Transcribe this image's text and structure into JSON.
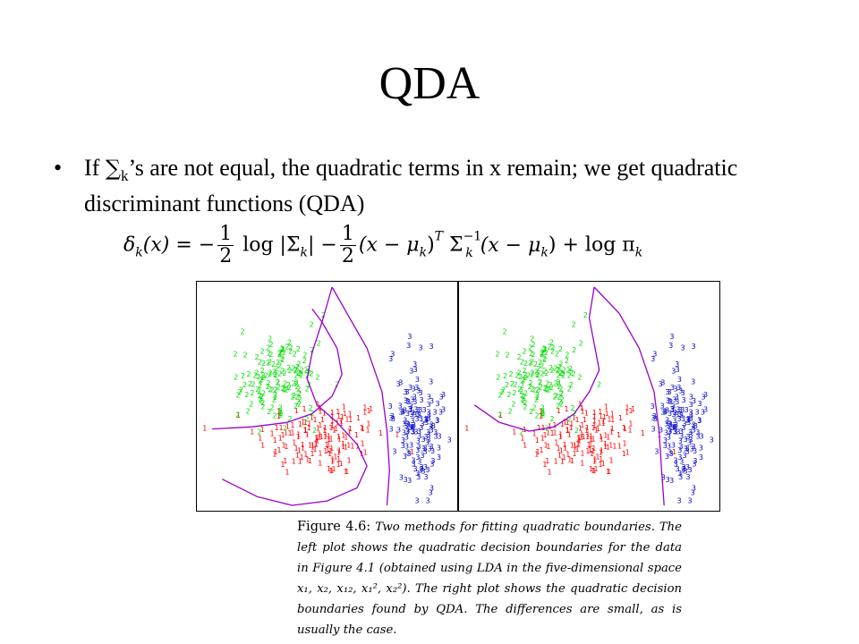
{
  "slide": {
    "title": "QDA",
    "bullet": {
      "prefix": "If ",
      "sigma": "∑",
      "sigma_sub": "k",
      "text_after": "’s are not equal, the quadratic terms in x remain; we get quadratic discriminant functions (QDA)"
    },
    "formula": {
      "lhs": "δ",
      "lhs_sub": "k",
      "arg": "(x)",
      "eq": "=",
      "minus1": "−",
      "half_num": "1",
      "half_den": "2",
      "log1": "log |Σ",
      "log1_sub": "k",
      "log1_close": "|",
      "minus2": "−",
      "half2_num": "1",
      "half2_den": "2",
      "quad_open": "(x − μ",
      "quad_sub": "k",
      "quad_close": ")",
      "T": "T",
      "sigma_inv": "Σ",
      "sigma_inv_sub": "k",
      "sigma_inv_sup": "−1",
      "quad2_open": "(x − μ",
      "quad2_sub": "k",
      "quad2_close": ")",
      "plus": "+",
      "log2": "log π",
      "log2_sub": "k"
    },
    "caption": {
      "label": "Figure 4.6:",
      "text_italic": "Two methods for fitting quadratic boundaries. The left plot shows the quadratic decision boundaries for the data in Figure 4.1 (obtained using LDA in the five-dimensional space x₁, x₂, x₁₂, x₁², x₂²). The right plot shows the quadratic decision boundaries found by QDA. The differences are small, as is usually the case."
    }
  },
  "chart_data": [
    {
      "type": "scatter",
      "title": "",
      "xlabel": "",
      "ylabel": "",
      "xlim": [
        0,
        100
      ],
      "ylim": [
        0,
        100
      ],
      "grid": false,
      "legend": "none",
      "series": [
        {
          "marker": "1",
          "color": "#ff0000",
          "cluster": {
            "cx": 48,
            "cy": 30,
            "sx": 13,
            "sy": 9,
            "n": 150
          }
        },
        {
          "marker": "2",
          "color": "#00dd00",
          "cluster": {
            "cx": 30,
            "cy": 56,
            "sx": 9,
            "sy": 10,
            "n": 150
          }
        },
        {
          "marker": "3",
          "color": "#0000cc",
          "cluster": {
            "cx": 86,
            "cy": 36,
            "sx": 5,
            "sy": 14,
            "n": 150
          }
        }
      ],
      "boundaries": [
        {
          "color": "#9900cc",
          "points": [
            [
              8,
              12
            ],
            [
              22,
              4
            ],
            [
              36,
              0
            ],
            [
              50,
              2
            ],
            [
              62,
              8
            ],
            [
              66,
              18
            ],
            [
              62,
              28
            ],
            [
              54,
              38
            ],
            [
              46,
              46
            ],
            [
              42,
              58
            ],
            [
              44,
              70
            ],
            [
              48,
              84
            ],
            [
              52,
              100
            ]
          ]
        },
        {
          "color": "#9900cc",
          "points": [
            [
              4,
              35
            ],
            [
              20,
              36
            ],
            [
              34,
              38
            ],
            [
              44,
              42
            ],
            [
              52,
              50
            ],
            [
              56,
              60
            ],
            [
              54,
              72
            ],
            [
              48,
              84
            ],
            [
              44,
              90
            ]
          ]
        },
        {
          "color": "#9900cc",
          "points": [
            [
              74,
              0
            ],
            [
              75,
              16
            ],
            [
              74,
              34
            ],
            [
              72,
              52
            ],
            [
              66,
              72
            ],
            [
              58,
              88
            ],
            [
              52,
              100
            ]
          ]
        }
      ]
    },
    {
      "type": "scatter",
      "title": "",
      "xlabel": "",
      "ylabel": "",
      "xlim": [
        0,
        100
      ],
      "ylim": [
        0,
        100
      ],
      "grid": false,
      "legend": "none",
      "series": [
        {
          "marker": "1",
          "color": "#ff0000",
          "cluster": {
            "cx": 48,
            "cy": 30,
            "sx": 13,
            "sy": 9,
            "n": 150
          }
        },
        {
          "marker": "2",
          "color": "#00dd00",
          "cluster": {
            "cx": 30,
            "cy": 56,
            "sx": 9,
            "sy": 10,
            "n": 150
          }
        },
        {
          "marker": "3",
          "color": "#0000cc",
          "cluster": {
            "cx": 86,
            "cy": 36,
            "sx": 5,
            "sy": 14,
            "n": 150
          }
        }
      ],
      "boundaries": [
        {
          "color": "#9900cc",
          "points": [
            [
              4,
              46
            ],
            [
              14,
              38
            ],
            [
              26,
              34
            ],
            [
              36,
              36
            ],
            [
              44,
              42
            ],
            [
              50,
              52
            ],
            [
              54,
              62
            ],
            [
              52,
              74
            ],
            [
              50,
              86
            ],
            [
              52,
              100
            ]
          ]
        },
        {
          "color": "#9900cc",
          "points": [
            [
              80,
              0
            ],
            [
              79,
              16
            ],
            [
              78,
              34
            ],
            [
              76,
              52
            ],
            [
              70,
              72
            ],
            [
              62,
              88
            ],
            [
              52,
              100
            ]
          ]
        }
      ]
    }
  ]
}
